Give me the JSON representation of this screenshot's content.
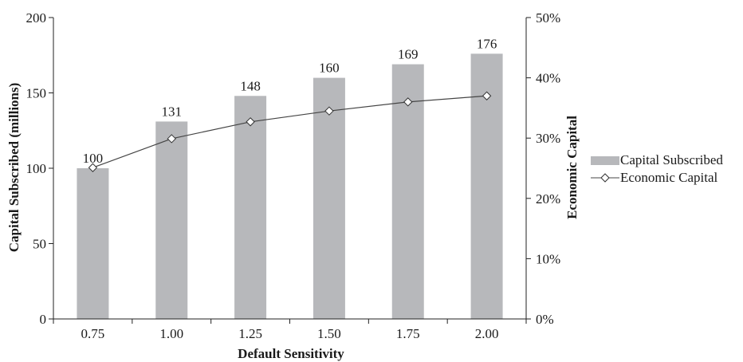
{
  "chart_data": {
    "type": "bar",
    "categories": [
      "0.75",
      "1.00",
      "1.25",
      "1.50",
      "1.75",
      "2.00"
    ],
    "xlabel": "Default Sensitivity",
    "ylabel": "Capital Subscribed (millions)",
    "y2label": "Economic Capital",
    "ylim": [
      0,
      200
    ],
    "y2lim": [
      0,
      0.5
    ],
    "yticks": [
      "0",
      "50",
      "100",
      "150",
      "200"
    ],
    "y2ticks": [
      "0%",
      "10%",
      "20%",
      "30%",
      "40%",
      "50%"
    ],
    "series": [
      {
        "name": "Capital Subscribed",
        "type": "bar",
        "axis": "left",
        "values": [
          100,
          131,
          148,
          160,
          169,
          176
        ],
        "labels": [
          "100",
          "131",
          "148",
          "160",
          "169",
          "176"
        ]
      },
      {
        "name": "Economic Capital",
        "type": "line",
        "axis": "right",
        "marker": "diamond",
        "values": [
          0.251,
          0.299,
          0.327,
          0.345,
          0.36,
          0.37
        ]
      }
    ],
    "grid": false,
    "legend": "right",
    "colors": {
      "bar": "#b7b8bb",
      "line": "#444444",
      "axis": "#222222"
    }
  }
}
